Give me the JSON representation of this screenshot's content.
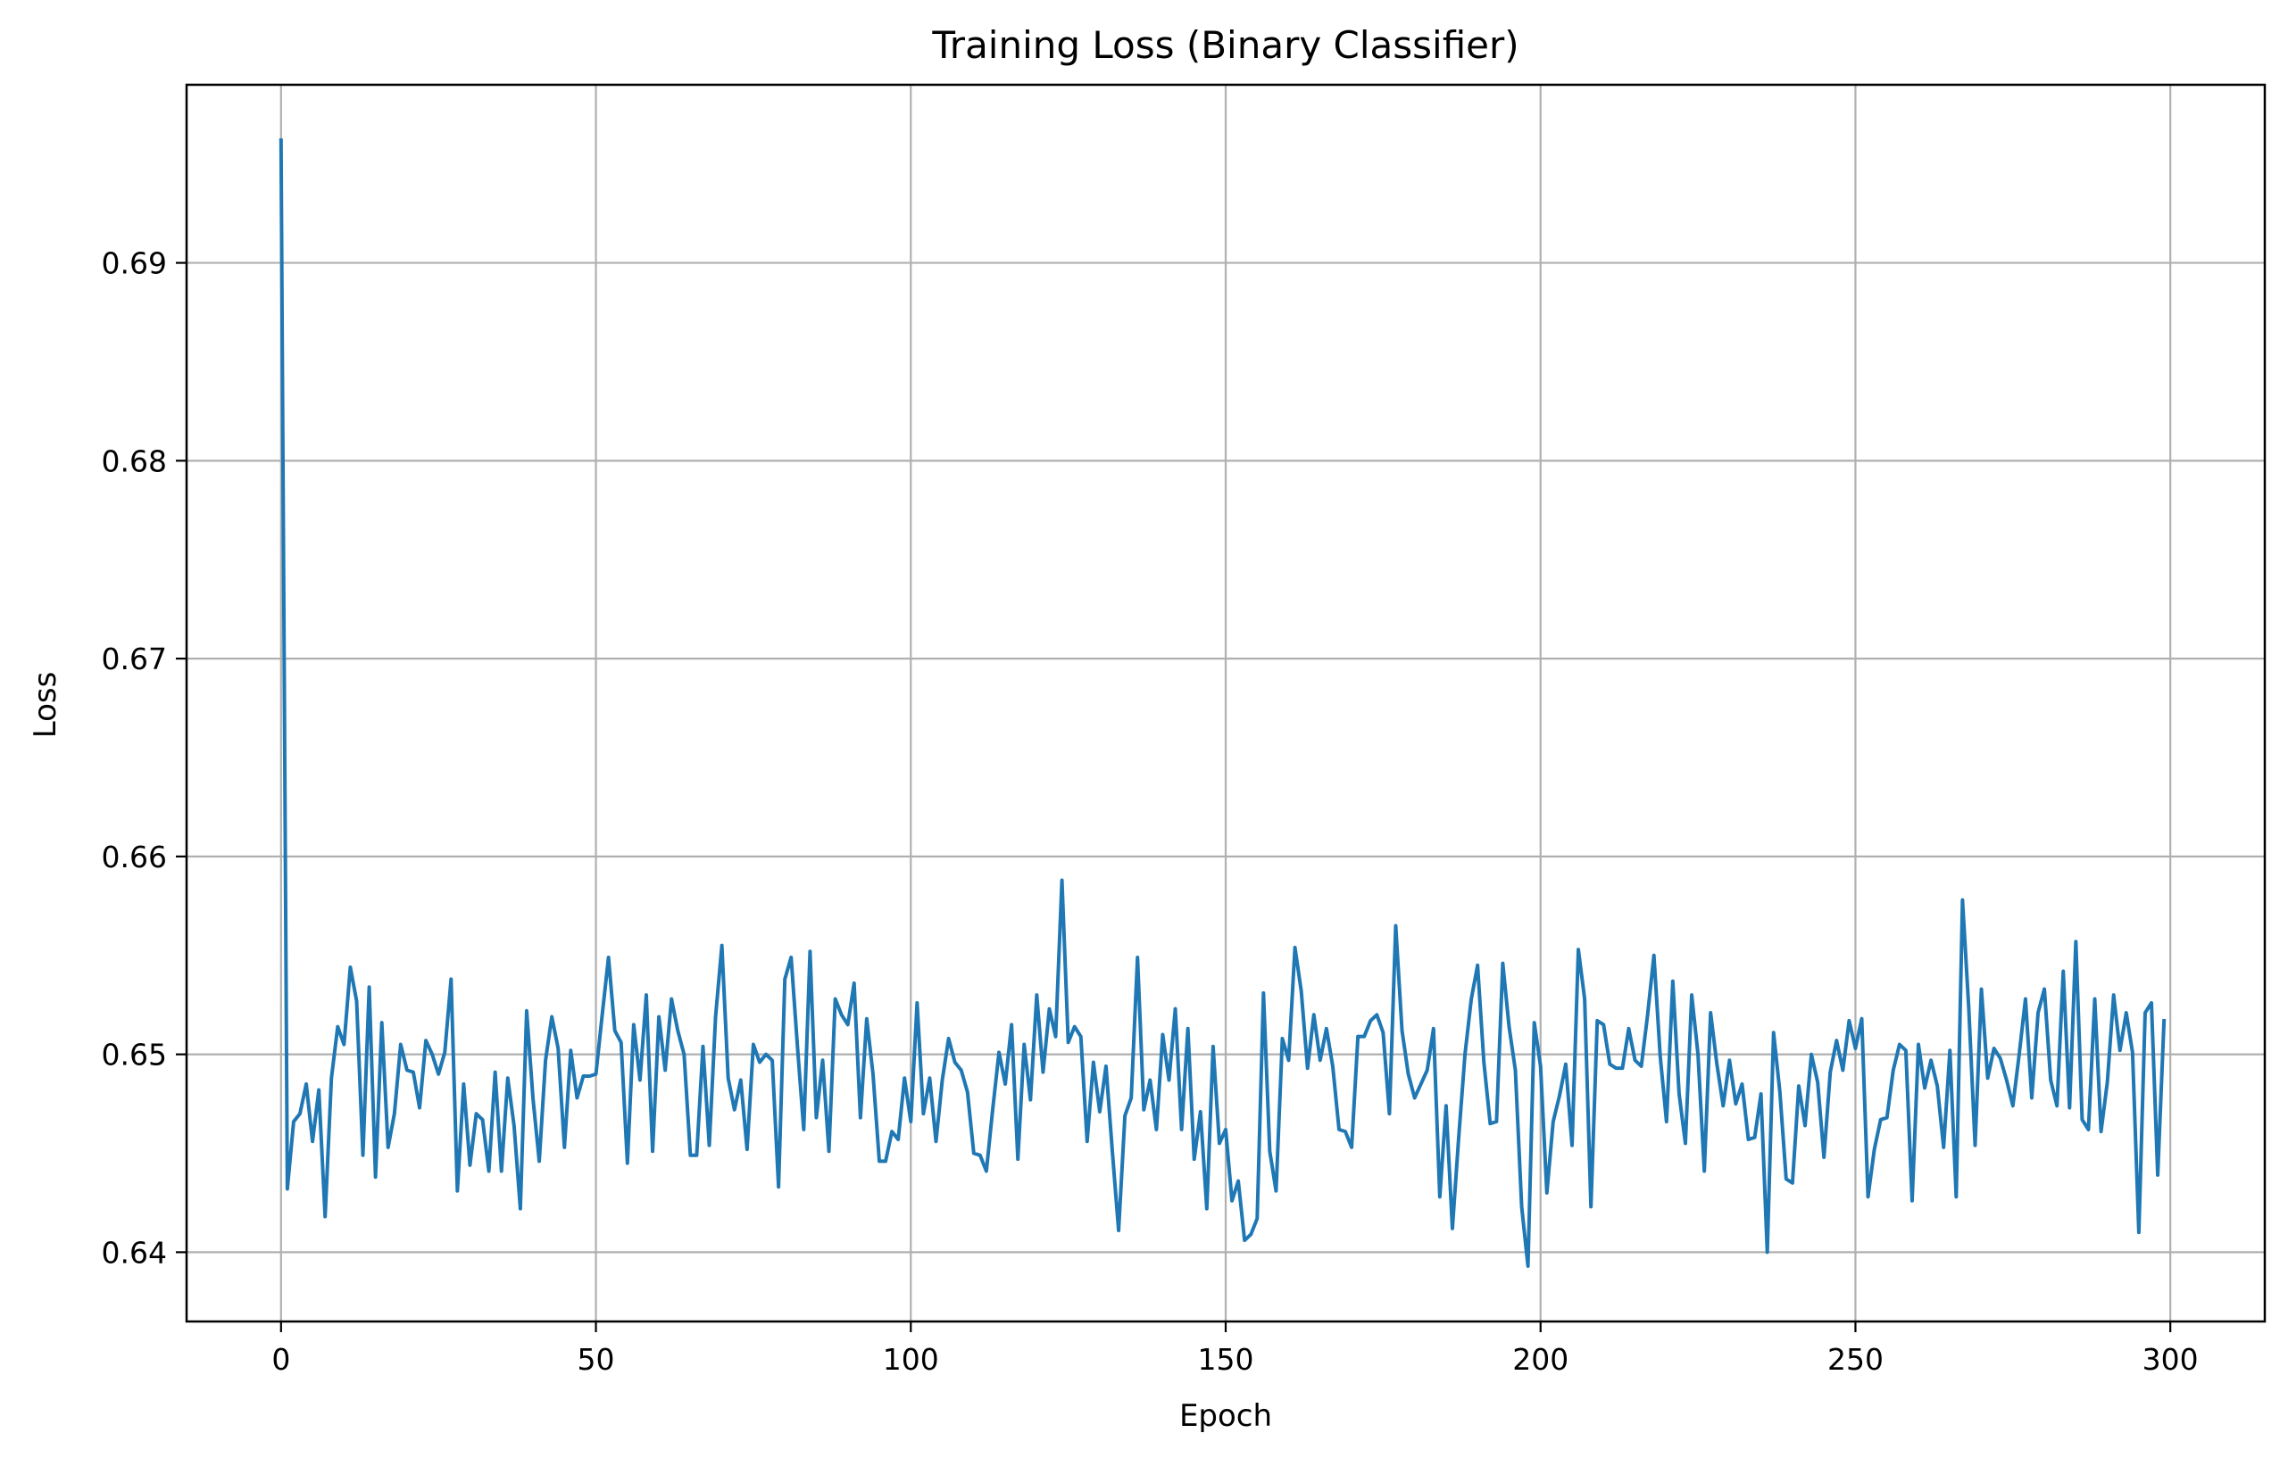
{
  "chart_data": {
    "type": "line",
    "title": "Training Loss (Binary Classifier)",
    "xlabel": "Epoch",
    "ylabel": "Loss",
    "xlim": [
      -15,
      315
    ],
    "ylim": [
      0.6365,
      0.699
    ],
    "grid": true,
    "xticks": [
      0,
      50,
      100,
      150,
      200,
      250,
      300
    ],
    "xtick_labels": [
      "0",
      "50",
      "100",
      "150",
      "200",
      "250",
      "300"
    ],
    "yticks": [
      0.64,
      0.65,
      0.66,
      0.67,
      0.68,
      0.69
    ],
    "ytick_labels": [
      "0.64",
      "0.65",
      "0.66",
      "0.67",
      "0.68",
      "0.69"
    ],
    "line_color": "#1f77b4",
    "grid_color": "#b0b0b0",
    "series": [
      {
        "x_start": 0,
        "x_step": 1,
        "values": [
          0.6962,
          0.6432,
          0.6466,
          0.647,
          0.6485,
          0.6456,
          0.6482,
          0.6418,
          0.6488,
          0.6514,
          0.6505,
          0.6544,
          0.6527,
          0.6449,
          0.6534,
          0.6438,
          0.6516,
          0.6453,
          0.647,
          0.6505,
          0.6492,
          0.6491,
          0.6473,
          0.6507,
          0.65,
          0.649,
          0.6501,
          0.6538,
          0.6431,
          0.6485,
          0.6444,
          0.647,
          0.6467,
          0.6441,
          0.6491,
          0.6441,
          0.6488,
          0.6464,
          0.6422,
          0.6522,
          0.6478,
          0.6446,
          0.6497,
          0.6519,
          0.6503,
          0.6453,
          0.6502,
          0.6478,
          0.6489,
          0.6489,
          0.649,
          0.652,
          0.6549,
          0.6512,
          0.6506,
          0.6445,
          0.6515,
          0.6487,
          0.653,
          0.6451,
          0.6519,
          0.6492,
          0.6528,
          0.6512,
          0.65,
          0.6449,
          0.6449,
          0.6504,
          0.6454,
          0.6519,
          0.6555,
          0.6488,
          0.6472,
          0.6487,
          0.6452,
          0.6505,
          0.6496,
          0.65,
          0.6497,
          0.6433,
          0.6538,
          0.6549,
          0.6504,
          0.6462,
          0.6552,
          0.6468,
          0.6497,
          0.6451,
          0.6528,
          0.652,
          0.6515,
          0.6536,
          0.6468,
          0.6518,
          0.649,
          0.6446,
          0.6446,
          0.6461,
          0.6457,
          0.6488,
          0.6466,
          0.6526,
          0.647,
          0.6488,
          0.6456,
          0.6487,
          0.6508,
          0.6496,
          0.6492,
          0.6481,
          0.645,
          0.6449,
          0.6441,
          0.6472,
          0.6501,
          0.6485,
          0.6515,
          0.6447,
          0.6505,
          0.6477,
          0.653,
          0.6491,
          0.6523,
          0.6509,
          0.6588,
          0.6506,
          0.6514,
          0.6509,
          0.6456,
          0.6496,
          0.6471,
          0.6494,
          0.6451,
          0.6411,
          0.6469,
          0.6478,
          0.6549,
          0.6472,
          0.6487,
          0.6462,
          0.651,
          0.6487,
          0.6523,
          0.6462,
          0.6513,
          0.6447,
          0.6471,
          0.6422,
          0.6504,
          0.6455,
          0.6462,
          0.6426,
          0.6436,
          0.6406,
          0.6409,
          0.6417,
          0.6531,
          0.6451,
          0.6431,
          0.6508,
          0.6497,
          0.6554,
          0.6532,
          0.6493,
          0.652,
          0.6497,
          0.6513,
          0.6494,
          0.6462,
          0.6461,
          0.6453,
          0.6509,
          0.6509,
          0.6517,
          0.652,
          0.6511,
          0.647,
          0.6565,
          0.6512,
          0.649,
          0.6478,
          0.6485,
          0.6492,
          0.6513,
          0.6428,
          0.6474,
          0.6412,
          0.6458,
          0.65,
          0.6528,
          0.6545,
          0.6496,
          0.6465,
          0.6466,
          0.6546,
          0.6514,
          0.6492,
          0.6423,
          0.6393,
          0.6516,
          0.6494,
          0.643,
          0.6466,
          0.6479,
          0.6495,
          0.6454,
          0.6553,
          0.6528,
          0.6423,
          0.6517,
          0.6515,
          0.6495,
          0.6493,
          0.6493,
          0.6513,
          0.6497,
          0.6494,
          0.652,
          0.655,
          0.6499,
          0.6466,
          0.6537,
          0.648,
          0.6455,
          0.653,
          0.65,
          0.6441,
          0.6521,
          0.6495,
          0.6474,
          0.6497,
          0.6475,
          0.6485,
          0.6457,
          0.6458,
          0.648,
          0.64,
          0.6511,
          0.6481,
          0.6437,
          0.6435,
          0.6484,
          0.6464,
          0.65,
          0.6486,
          0.6448,
          0.6491,
          0.6507,
          0.6492,
          0.6517,
          0.6503,
          0.6518,
          0.6428,
          0.6452,
          0.6467,
          0.6468,
          0.6492,
          0.6505,
          0.6502,
          0.6426,
          0.6505,
          0.6483,
          0.6497,
          0.6484,
          0.6453,
          0.6502,
          0.6428,
          0.6578,
          0.6523,
          0.6454,
          0.6533,
          0.6488,
          0.6503,
          0.6498,
          0.6487,
          0.6474,
          0.65,
          0.6528,
          0.6478,
          0.6521,
          0.6533,
          0.6487,
          0.6474,
          0.6542,
          0.6473,
          0.6557,
          0.6467,
          0.6462,
          0.6528,
          0.6461,
          0.6486,
          0.653,
          0.6502,
          0.6521,
          0.6501,
          0.641,
          0.6521,
          0.6526,
          0.6439,
          0.6517
        ]
      }
    ]
  }
}
